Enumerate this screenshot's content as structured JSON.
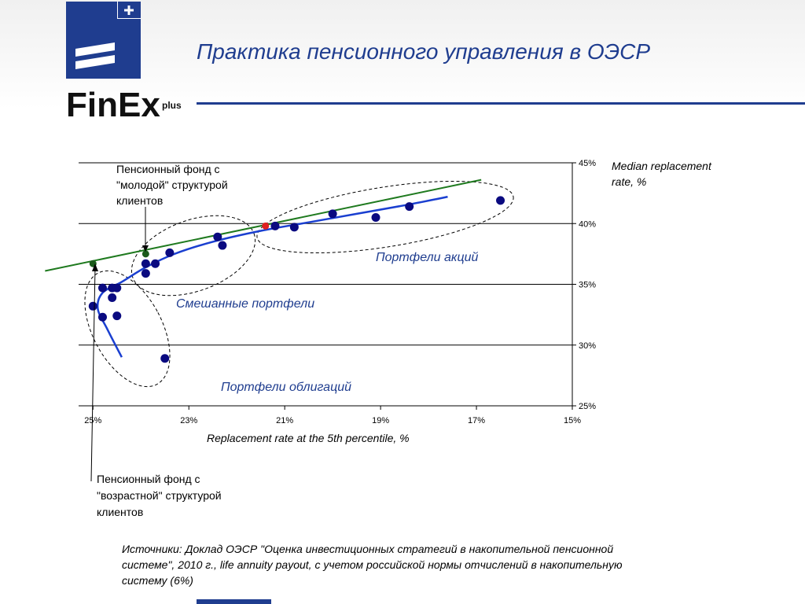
{
  "header": {
    "title": "Практика пенсионного управления в ОЭСР",
    "logo_text": "FinEx",
    "logo_suffix": "plus",
    "brand_color": "#1f3d8f"
  },
  "chart_data": {
    "type": "scatter",
    "xlabel": "Replacement rate at the 5th percentile, %",
    "ylabel": "Median replacement rate, %",
    "x_axis_reversed": true,
    "xlim": [
      25.3,
      15
    ],
    "ylim": [
      25,
      45
    ],
    "x_ticks": [
      "25%",
      "23%",
      "21%",
      "19%",
      "17%",
      "15%"
    ],
    "x_tick_values": [
      25,
      23,
      21,
      19,
      17,
      15
    ],
    "y_ticks": [
      "45%",
      "40%",
      "35%",
      "30%",
      "25%"
    ],
    "y_tick_values": [
      45,
      40,
      35,
      30,
      25
    ],
    "y_axis_position": "right",
    "grid": "horizontal",
    "point_color": "#0a0a80",
    "points": [
      {
        "x": 25.0,
        "y": 33.2
      },
      {
        "x": 24.8,
        "y": 34.7
      },
      {
        "x": 24.8,
        "y": 32.3
      },
      {
        "x": 24.6,
        "y": 34.7
      },
      {
        "x": 24.6,
        "y": 33.9
      },
      {
        "x": 24.5,
        "y": 34.7
      },
      {
        "x": 24.5,
        "y": 32.4
      },
      {
        "x": 23.9,
        "y": 35.9
      },
      {
        "x": 23.9,
        "y": 36.7
      },
      {
        "x": 23.7,
        "y": 36.7
      },
      {
        "x": 23.4,
        "y": 37.6
      },
      {
        "x": 23.5,
        "y": 28.9
      },
      {
        "x": 22.4,
        "y": 38.9
      },
      {
        "x": 22.3,
        "y": 38.2
      },
      {
        "x": 21.2,
        "y": 39.8
      },
      {
        "x": 20.8,
        "y": 39.7
      },
      {
        "x": 20.0,
        "y": 40.8
      },
      {
        "x": 19.1,
        "y": 40.5
      },
      {
        "x": 18.4,
        "y": 41.4
      },
      {
        "x": 16.5,
        "y": 41.9
      }
    ],
    "highlight_points": [
      {
        "x": 25.0,
        "y": 36.7,
        "color": "#1a5a1a"
      },
      {
        "x": 23.9,
        "y": 37.5,
        "color": "#1a5a1a"
      },
      {
        "x": 21.4,
        "y": 39.8,
        "color": "#e02020"
      }
    ],
    "efficient_frontier": {
      "color": "#1a3fd0",
      "points": [
        [
          24.4,
          29.0
        ],
        [
          24.7,
          31.3
        ],
        [
          24.9,
          33.0
        ],
        [
          24.8,
          34.3
        ],
        [
          24.4,
          35.2
        ],
        [
          23.9,
          36.4
        ],
        [
          23.3,
          37.5
        ],
        [
          22.5,
          38.5
        ],
        [
          21.5,
          39.4
        ],
        [
          20.5,
          40.1
        ],
        [
          19.5,
          40.8
        ],
        [
          18.5,
          41.5
        ],
        [
          17.6,
          42.2
        ]
      ]
    },
    "trend_line": {
      "color": "#1f7a1f",
      "from": [
        26.0,
        36.1
      ],
      "to": [
        16.9,
        43.6
      ]
    },
    "annotations": {
      "young_fund": "Пенсионный фонд с \"молодой\" структурой клиентов",
      "old_fund": "Пенсионный фонд с \"возрастной\" структурой клиентов",
      "equity": "Портфели акций",
      "mixed": "Смешанные портфели",
      "bonds": "Портфели облигаций"
    }
  },
  "footer": {
    "source": "Источники: Доклад ОЭСР \"Оценка инвестиционных стратегий в накопительной пенсионной системе\", 2010 г., life annuity payout, с учетом российской нормы отчислений в накопительную систему (6%)"
  }
}
